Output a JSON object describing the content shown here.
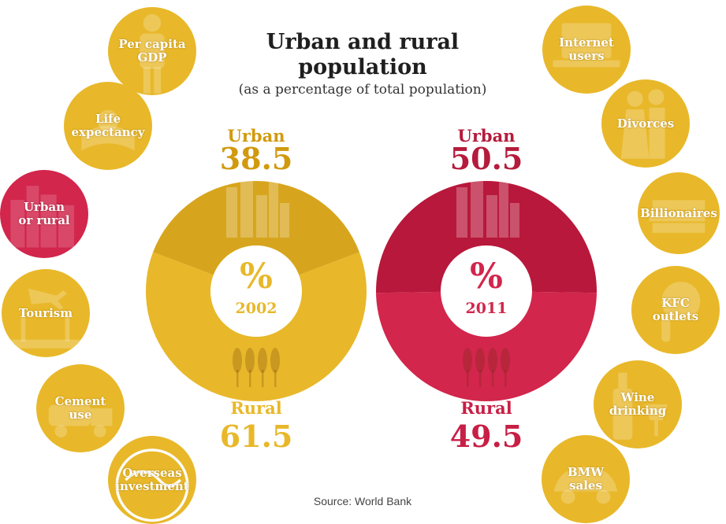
{
  "title_lines": [
    "Urban and rural",
    "population"
  ],
  "subtitle": "(as a percentage of total population)",
  "source": "Source: World Bank",
  "nav_left": [
    {
      "lines": [
        "Per capita",
        "GDP"
      ],
      "icon": "person-icon",
      "active": false
    },
    {
      "lines": [
        "Life",
        "expectancy"
      ],
      "icon": "baby-icon",
      "active": false
    },
    {
      "lines": [
        "Urban",
        "or rural"
      ],
      "icon": "city-icon",
      "active": true
    },
    {
      "lines": [
        "Tourism"
      ],
      "icon": "palm-plane-icon",
      "active": false
    },
    {
      "lines": [
        "Cement",
        "use"
      ],
      "icon": "cement-truck-icon",
      "active": false
    },
    {
      "lines": [
        "Overseas",
        "investment"
      ],
      "icon": "globe-icon",
      "active": false
    }
  ],
  "nav_right": [
    {
      "lines": [
        "Internet",
        "users"
      ],
      "icon": "laptop-icon",
      "active": false
    },
    {
      "lines": [
        "Divorces"
      ],
      "icon": "couple-icon",
      "active": false
    },
    {
      "lines": [
        "Billionaires"
      ],
      "icon": "money-stack-icon",
      "active": false
    },
    {
      "lines": [
        "KFC",
        "outlets"
      ],
      "icon": "chicken-icon",
      "active": false
    },
    {
      "lines": [
        "Wine",
        "drinking"
      ],
      "icon": "wine-bottle-icon",
      "active": false
    },
    {
      "lines": [
        "BMW",
        "sales"
      ],
      "icon": "car-icon",
      "active": false
    }
  ],
  "colors": {
    "gold": "#e8b82a",
    "gold_dark": "#d7a51d",
    "red": "#d2264c",
    "red_dark": "#b8183b",
    "white": "#ffffff"
  },
  "chart_data": [
    {
      "type": "pie",
      "center_symbol": "%",
      "center_label": "2002",
      "categories": [
        "Urban",
        "Rural"
      ],
      "values": [
        38.5,
        61.5
      ],
      "value_labels": [
        "38.5",
        "61.5"
      ],
      "colors": [
        "#d7a51d",
        "#e8b82a"
      ],
      "label_colors": [
        "#d19a0e",
        "#e8b82a"
      ]
    },
    {
      "type": "pie",
      "center_symbol": "%",
      "center_label": "2011",
      "categories": [
        "Urban",
        "Rural"
      ],
      "values": [
        50.5,
        49.5
      ],
      "value_labels": [
        "50.5",
        "49.5"
      ],
      "colors": [
        "#b8183b",
        "#d2264c"
      ],
      "label_colors": [
        "#b51b3c",
        "#c71f45"
      ]
    }
  ]
}
